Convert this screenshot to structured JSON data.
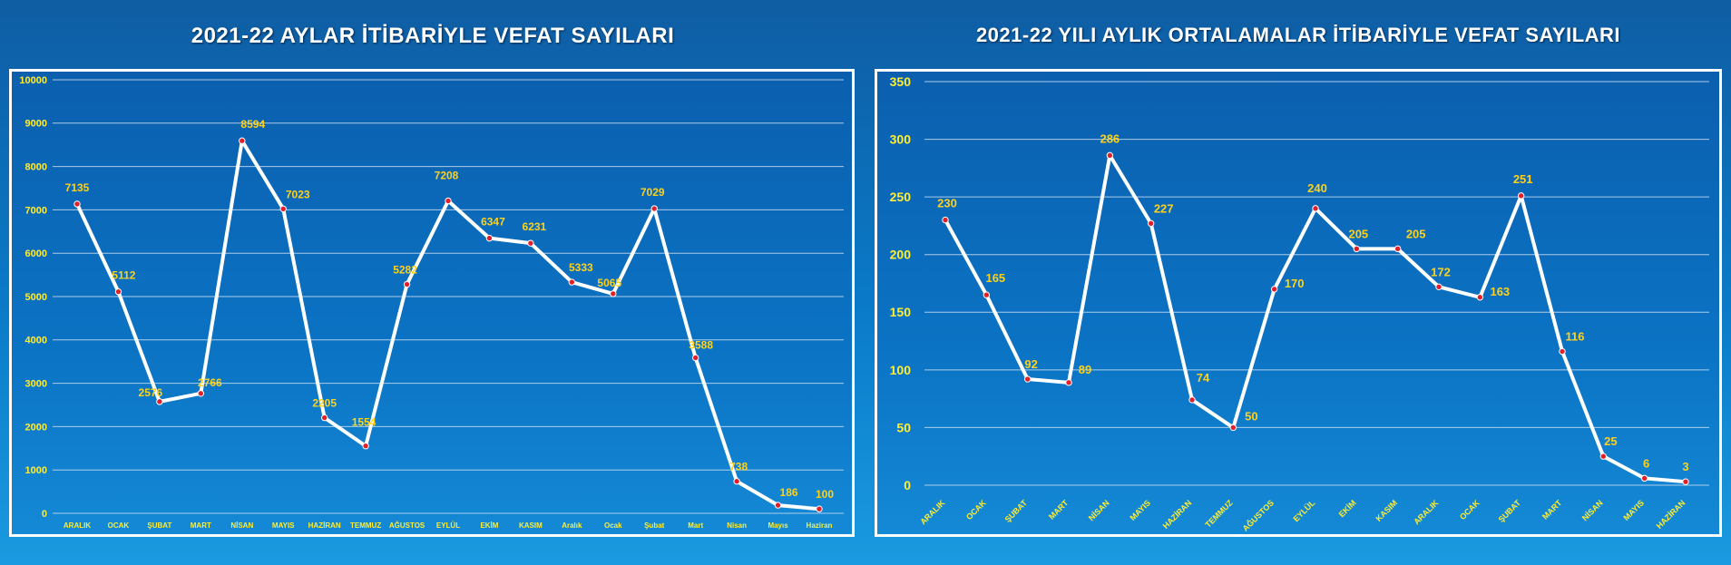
{
  "chart_data": [
    {
      "type": "line",
      "title": "2021-22 AYLAR İTİBARİYLE VEFAT SAYILARI",
      "xlabel": "",
      "ylabel": "",
      "ylim": [
        0,
        10000
      ],
      "yticks": [
        0,
        1000,
        2000,
        3000,
        4000,
        5000,
        6000,
        7000,
        8000,
        9000,
        10000
      ],
      "grid": true,
      "categories": [
        "ARALIK",
        "OCAK",
        "ŞUBAT",
        "MART",
        "NİSAN",
        "MAYIS",
        "HAZİRAN",
        "TEMMUZ",
        "AĞUSTOS",
        "EYLÜL",
        "EKİM",
        "KASIM",
        "Aralık",
        "Ocak",
        "Şubat",
        "Mart",
        "Nisan",
        "Mayıs",
        "Haziran"
      ],
      "series": [
        {
          "values": [
            7135,
            5112,
            2576,
            2766,
            8594,
            7023,
            2205,
            1554,
            5282,
            7208,
            6347,
            6231,
            5333,
            5065,
            7029,
            3588,
            738,
            186,
            100
          ]
        }
      ],
      "colors": {
        "line": "#ffffff",
        "marker": "#e0202a",
        "labels": "#ffd21a",
        "ticks": "#ffee33",
        "grid": "#c9ddf0"
      }
    },
    {
      "type": "line",
      "title": "2021-22 YILI AYLIK ORTALAMALAR İTİBARİYLE VEFAT SAYILARI",
      "xlabel": "",
      "ylabel": "",
      "ylim": [
        0,
        350
      ],
      "yticks": [
        0,
        50,
        100,
        150,
        200,
        250,
        300,
        350
      ],
      "grid": true,
      "categories": [
        "ARALIK",
        "OCAK",
        "ŞUBAT",
        "MART",
        "NİSAN",
        "MAYIS",
        "HAZİRAN",
        "TEMMUZ",
        "AĞUSTOS",
        "EYLÜL",
        "EKİM",
        "KASIM",
        "ARALIK",
        "OCAK",
        "ŞUBAT",
        "MART",
        "NİSAN",
        "MAYIS",
        "HAZİRAN"
      ],
      "series": [
        {
          "values": [
            230,
            165,
            92,
            89,
            286,
            227,
            74,
            50,
            170,
            240,
            205,
            205,
            172,
            163,
            251,
            116,
            25,
            6,
            3
          ]
        }
      ],
      "colors": {
        "line": "#ffffff",
        "marker": "#e0202a",
        "labels": "#ffd21a",
        "ticks": "#ffee33",
        "grid": "#c9ddf0"
      }
    }
  ]
}
